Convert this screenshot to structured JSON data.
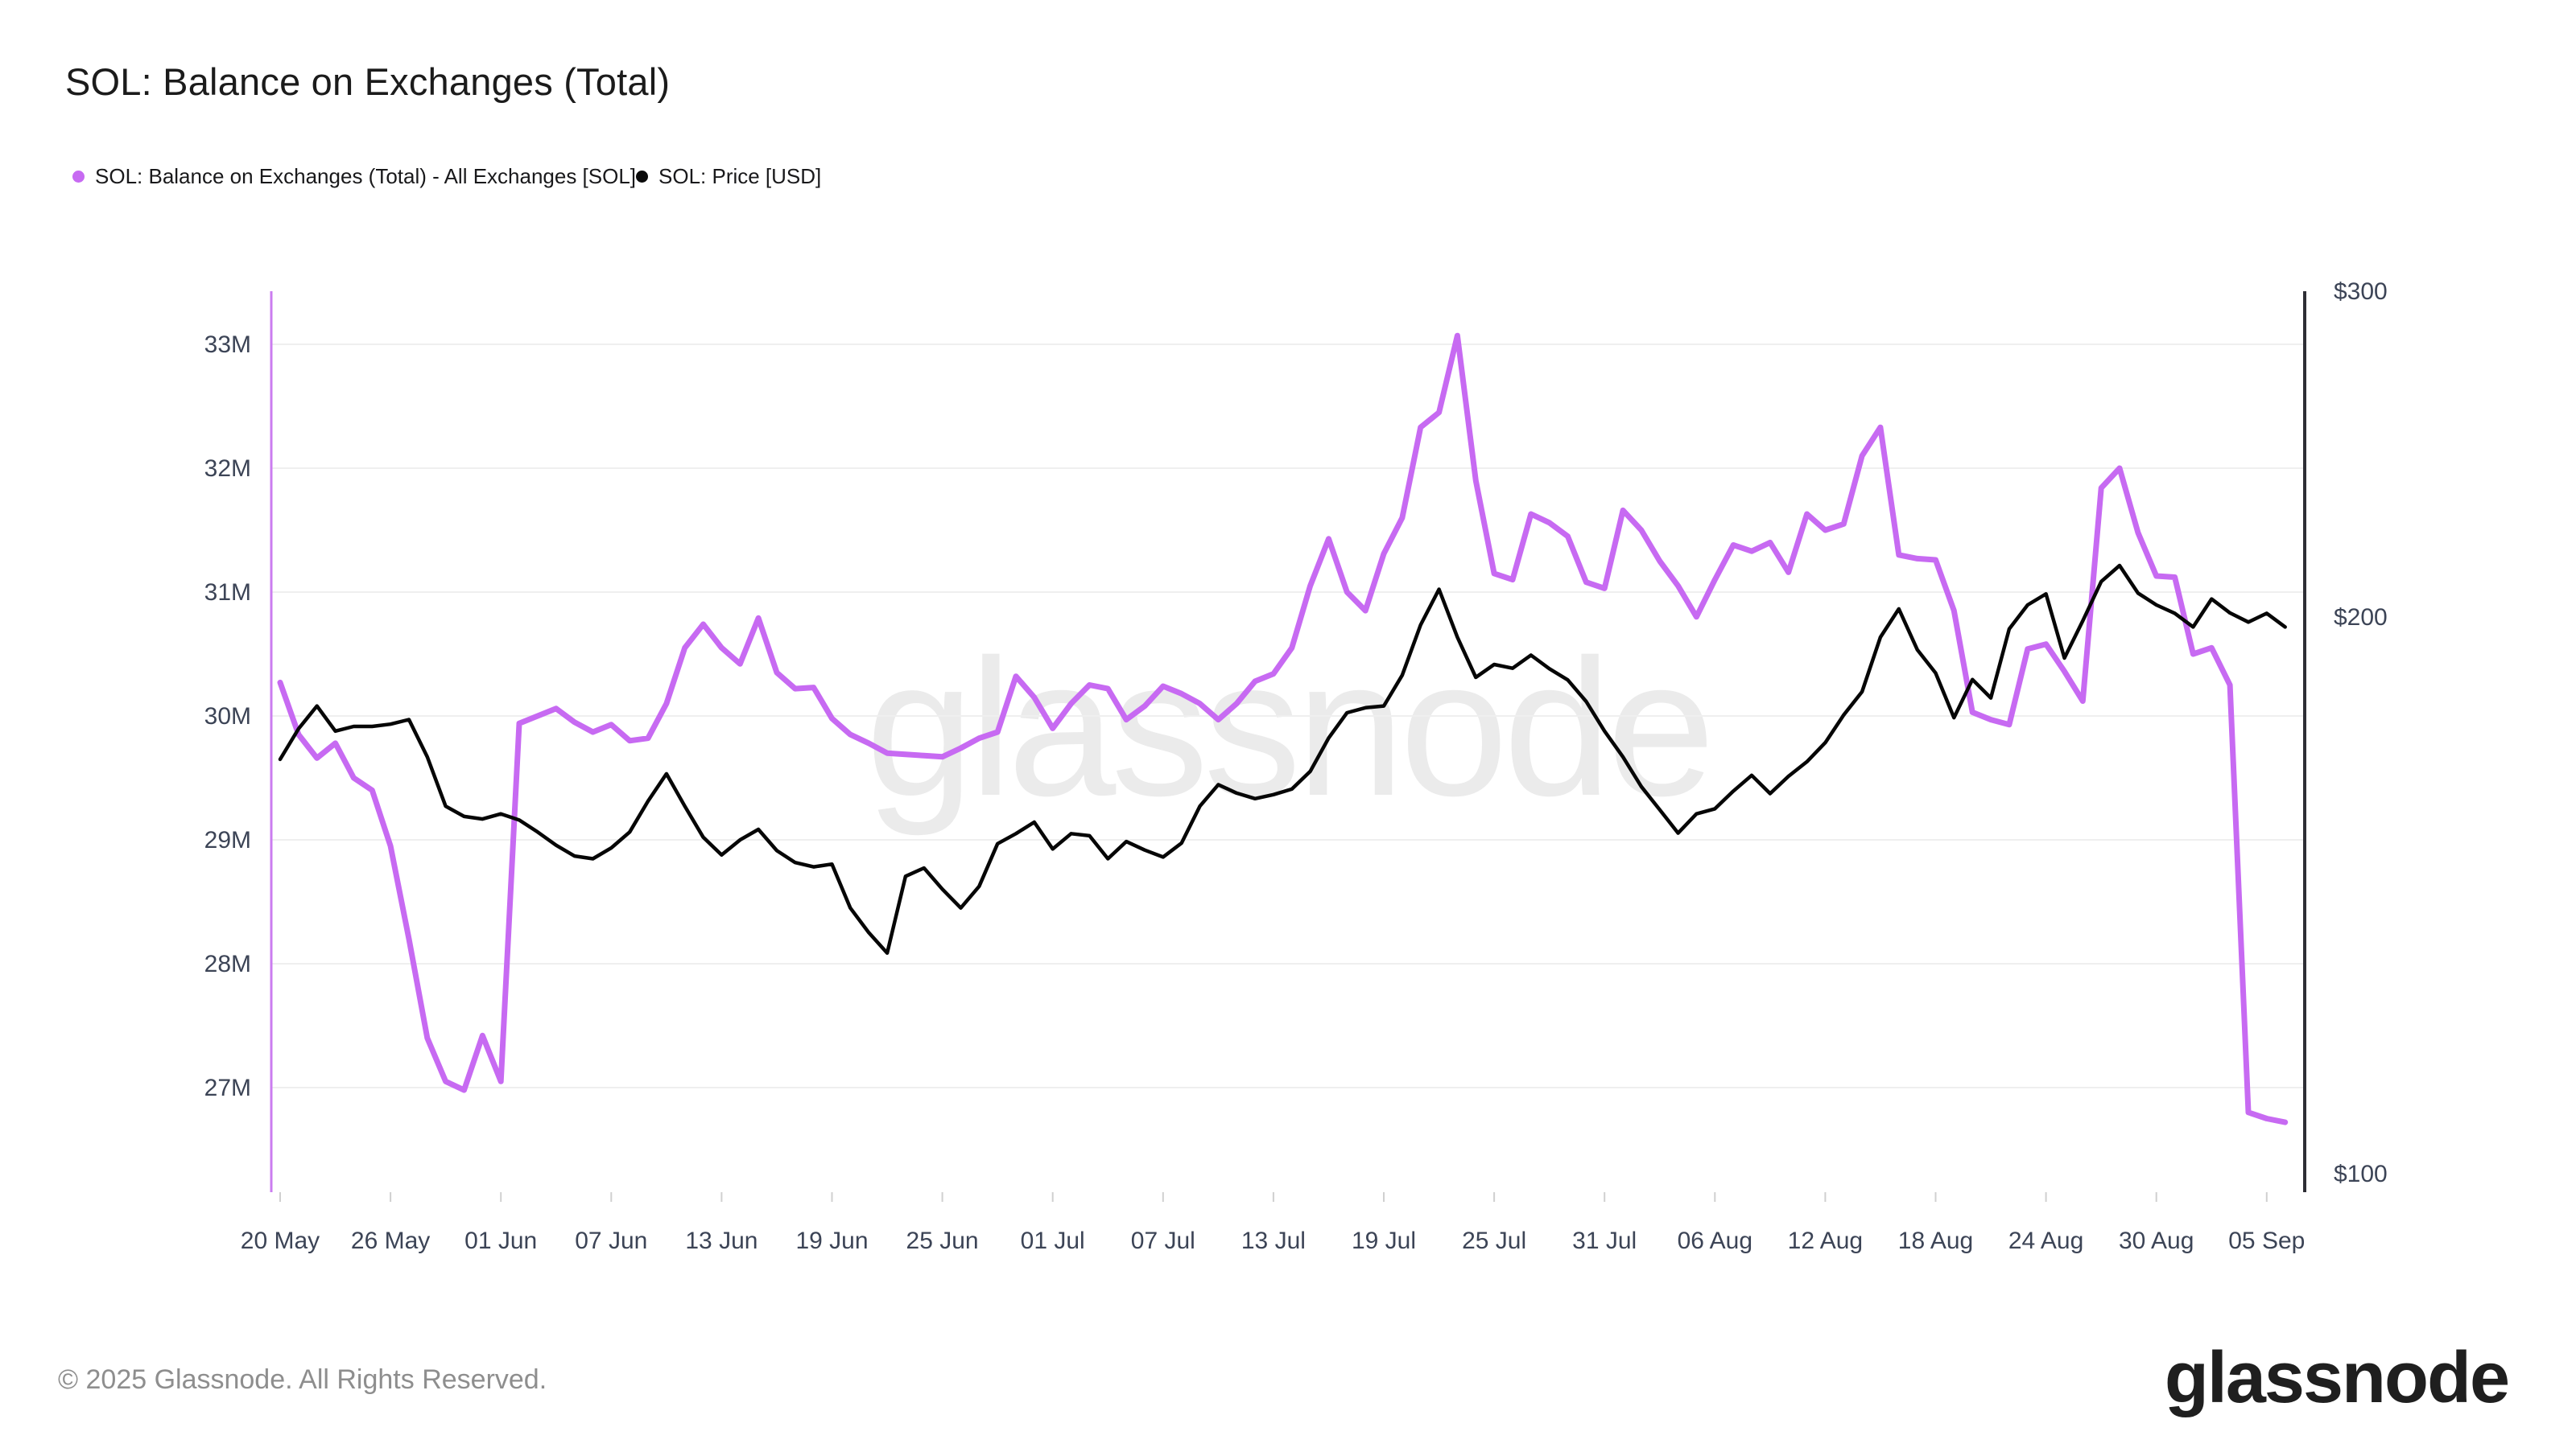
{
  "chart": {
    "title": "SOL: Balance on Exchanges (Total)"
  },
  "legend": {
    "items": [
      {
        "label": "SOL: Balance on Exchanges (Total) - All Exchanges [SOL]",
        "color": "#c76af2"
      },
      {
        "label": "SOL: Price [USD]",
        "color": "#0a0a0a"
      }
    ]
  },
  "watermark": {
    "text": "glassnode",
    "color": "#ebebeb"
  },
  "footer": {
    "copyright": "© 2025 Glassnode. All Rights Reserved.",
    "logo": "glassnode"
  },
  "colors": {
    "balance_line": "#c76af2",
    "price_line": "#060606",
    "left_axis_line": "#cb7cf0",
    "right_axis_line": "#2e2e35",
    "gridline": "#efefef",
    "tick_label": "#3c4456",
    "tick_stub": "#d0d0d0"
  },
  "axes": {
    "left": {
      "title": "balance",
      "unit": "SOL",
      "scale": "linear",
      "ticks": [
        {
          "label": "33M",
          "value": 33
        },
        {
          "label": "32M",
          "value": 32
        },
        {
          "label": "31M",
          "value": 31
        },
        {
          "label": "30M",
          "value": 30
        },
        {
          "label": "29M",
          "value": 29
        },
        {
          "label": "28M",
          "value": 28
        },
        {
          "label": "27M",
          "value": 27
        }
      ]
    },
    "right": {
      "title": "price",
      "unit": "USD",
      "scale": "log",
      "ticks": [
        {
          "label": "$300",
          "value": 300
        },
        {
          "label": "$200",
          "value": 200
        },
        {
          "label": "$100",
          "value": 100
        }
      ]
    },
    "bottom": {
      "ticks": [
        {
          "label": "20 May",
          "date": "2025-05-20"
        },
        {
          "label": "26 May",
          "date": "2025-05-26"
        },
        {
          "label": "01 Jun",
          "date": "2025-06-01"
        },
        {
          "label": "07 Jun",
          "date": "2025-06-07"
        },
        {
          "label": "13 Jun",
          "date": "2025-06-13"
        },
        {
          "label": "19 Jun",
          "date": "2025-06-19"
        },
        {
          "label": "25 Jun",
          "date": "2025-06-25"
        },
        {
          "label": "01 Jul",
          "date": "2025-07-01"
        },
        {
          "label": "07 Jul",
          "date": "2025-07-07"
        },
        {
          "label": "13 Jul",
          "date": "2025-07-13"
        },
        {
          "label": "19 Jul",
          "date": "2025-07-19"
        },
        {
          "label": "25 Jul",
          "date": "2025-07-25"
        },
        {
          "label": "31 Jul",
          "date": "2025-07-31"
        },
        {
          "label": "06 Aug",
          "date": "2025-08-06"
        },
        {
          "label": "12 Aug",
          "date": "2025-08-12"
        },
        {
          "label": "18 Aug",
          "date": "2025-08-18"
        },
        {
          "label": "24 Aug",
          "date": "2025-08-24"
        },
        {
          "label": "30 Aug",
          "date": "2025-08-30"
        },
        {
          "label": "05 Sep",
          "date": "2025-09-05"
        }
      ]
    }
  },
  "chart_data": {
    "type": "line",
    "title": "SOL: Balance on Exchanges (Total)",
    "x_start": "2025-05-20",
    "x_end": "2025-09-06",
    "left_ylim": [
      26.3,
      33.45
    ],
    "right_ylim": [
      100,
      300
    ],
    "right_scale": "log",
    "grid": "horizontal-only",
    "legend_position": "top-left",
    "series": [
      {
        "name": "SOL: Balance on Exchanges (Total) - All Exchanges [SOL]",
        "axis": "left",
        "unit": "M SOL",
        "color": "#c76af2",
        "points": [
          [
            "2025-05-20",
            30.27
          ],
          [
            "2025-05-21",
            29.85
          ],
          [
            "2025-05-22",
            29.66
          ],
          [
            "2025-05-23",
            29.78
          ],
          [
            "2025-05-24",
            29.5
          ],
          [
            "2025-05-25",
            29.4
          ],
          [
            "2025-05-26",
            28.95
          ],
          [
            "2025-05-27",
            28.2
          ],
          [
            "2025-05-28",
            27.4
          ],
          [
            "2025-05-29",
            27.05
          ],
          [
            "2025-05-30",
            26.98
          ],
          [
            "2025-05-31",
            27.42
          ],
          [
            "2025-06-01",
            27.05
          ],
          [
            "2025-06-02",
            29.94
          ],
          [
            "2025-06-03",
            30.0
          ],
          [
            "2025-06-04",
            30.06
          ],
          [
            "2025-06-05",
            29.95
          ],
          [
            "2025-06-06",
            29.87
          ],
          [
            "2025-06-07",
            29.93
          ],
          [
            "2025-06-08",
            29.8
          ],
          [
            "2025-06-09",
            29.82
          ],
          [
            "2025-06-10",
            30.1
          ],
          [
            "2025-06-11",
            30.55
          ],
          [
            "2025-06-12",
            30.74
          ],
          [
            "2025-06-13",
            30.55
          ],
          [
            "2025-06-14",
            30.42
          ],
          [
            "2025-06-15",
            30.79
          ],
          [
            "2025-06-16",
            30.35
          ],
          [
            "2025-06-17",
            30.22
          ],
          [
            "2025-06-18",
            30.23
          ],
          [
            "2025-06-19",
            29.98
          ],
          [
            "2025-06-20",
            29.85
          ],
          [
            "2025-06-21",
            29.78
          ],
          [
            "2025-06-22",
            29.7
          ],
          [
            "2025-06-23",
            29.69
          ],
          [
            "2025-06-24",
            29.68
          ],
          [
            "2025-06-25",
            29.67
          ],
          [
            "2025-06-26",
            29.74
          ],
          [
            "2025-06-27",
            29.82
          ],
          [
            "2025-06-28",
            29.87
          ],
          [
            "2025-06-29",
            30.32
          ],
          [
            "2025-06-30",
            30.15
          ],
          [
            "2025-07-01",
            29.9
          ],
          [
            "2025-07-02",
            30.1
          ],
          [
            "2025-07-03",
            30.25
          ],
          [
            "2025-07-04",
            30.22
          ],
          [
            "2025-07-05",
            29.97
          ],
          [
            "2025-07-06",
            30.08
          ],
          [
            "2025-07-07",
            30.24
          ],
          [
            "2025-07-08",
            30.18
          ],
          [
            "2025-07-09",
            30.1
          ],
          [
            "2025-07-10",
            29.97
          ],
          [
            "2025-07-11",
            30.1
          ],
          [
            "2025-07-12",
            30.28
          ],
          [
            "2025-07-13",
            30.34
          ],
          [
            "2025-07-14",
            30.55
          ],
          [
            "2025-07-15",
            31.05
          ],
          [
            "2025-07-16",
            31.43
          ],
          [
            "2025-07-17",
            31.0
          ],
          [
            "2025-07-18",
            30.85
          ],
          [
            "2025-07-19",
            31.31
          ],
          [
            "2025-07-20",
            31.6
          ],
          [
            "2025-07-21",
            32.33
          ],
          [
            "2025-07-22",
            32.45
          ],
          [
            "2025-07-23",
            33.07
          ],
          [
            "2025-07-24",
            31.9
          ],
          [
            "2025-07-25",
            31.15
          ],
          [
            "2025-07-26",
            31.1
          ],
          [
            "2025-07-27",
            31.63
          ],
          [
            "2025-07-28",
            31.56
          ],
          [
            "2025-07-29",
            31.45
          ],
          [
            "2025-07-30",
            31.08
          ],
          [
            "2025-07-31",
            31.03
          ],
          [
            "2025-08-01",
            31.66
          ],
          [
            "2025-08-02",
            31.5
          ],
          [
            "2025-08-03",
            31.25
          ],
          [
            "2025-08-04",
            31.05
          ],
          [
            "2025-08-05",
            30.8
          ],
          [
            "2025-08-06",
            31.1
          ],
          [
            "2025-08-07",
            31.38
          ],
          [
            "2025-08-08",
            31.33
          ],
          [
            "2025-08-09",
            31.4
          ],
          [
            "2025-08-10",
            31.16
          ],
          [
            "2025-08-11",
            31.63
          ],
          [
            "2025-08-12",
            31.5
          ],
          [
            "2025-08-13",
            31.55
          ],
          [
            "2025-08-14",
            32.1
          ],
          [
            "2025-08-15",
            32.33
          ],
          [
            "2025-08-16",
            31.3
          ],
          [
            "2025-08-17",
            31.27
          ],
          [
            "2025-08-18",
            31.26
          ],
          [
            "2025-08-19",
            30.85
          ],
          [
            "2025-08-20",
            30.03
          ],
          [
            "2025-08-21",
            29.97
          ],
          [
            "2025-08-22",
            29.93
          ],
          [
            "2025-08-23",
            30.54
          ],
          [
            "2025-08-24",
            30.58
          ],
          [
            "2025-08-25",
            30.36
          ],
          [
            "2025-08-26",
            30.12
          ],
          [
            "2025-08-27",
            31.84
          ],
          [
            "2025-08-28",
            32.0
          ],
          [
            "2025-08-29",
            31.48
          ],
          [
            "2025-08-30",
            31.13
          ],
          [
            "2025-08-31",
            31.12
          ],
          [
            "2025-09-01",
            30.5
          ],
          [
            "2025-09-02",
            30.55
          ],
          [
            "2025-09-03",
            30.25
          ],
          [
            "2025-09-04",
            26.8
          ],
          [
            "2025-09-05",
            26.75
          ],
          [
            "2025-09-06",
            26.72
          ]
        ]
      },
      {
        "name": "SOL: Price [USD]",
        "axis": "right",
        "unit": "USD",
        "color": "#060606",
        "points": [
          [
            "2025-05-20",
            167.5
          ],
          [
            "2025-05-21",
            174
          ],
          [
            "2025-05-22",
            179
          ],
          [
            "2025-05-23",
            173.5
          ],
          [
            "2025-05-24",
            174.5
          ],
          [
            "2025-05-25",
            174.5
          ],
          [
            "2025-05-26",
            175
          ],
          [
            "2025-05-27",
            176
          ],
          [
            "2025-05-28",
            168
          ],
          [
            "2025-05-29",
            158
          ],
          [
            "2025-05-30",
            156
          ],
          [
            "2025-05-31",
            155.5
          ],
          [
            "2025-06-01",
            156.5
          ],
          [
            "2025-06-02",
            155.3
          ],
          [
            "2025-06-03",
            153
          ],
          [
            "2025-06-04",
            150.5
          ],
          [
            "2025-06-05",
            148.5
          ],
          [
            "2025-06-06",
            148
          ],
          [
            "2025-06-07",
            150
          ],
          [
            "2025-06-08",
            153
          ],
          [
            "2025-06-09",
            159
          ],
          [
            "2025-06-10",
            164.5
          ],
          [
            "2025-06-11",
            158
          ],
          [
            "2025-06-12",
            152
          ],
          [
            "2025-06-13",
            148.7
          ],
          [
            "2025-06-14",
            151.5
          ],
          [
            "2025-06-15",
            153.5
          ],
          [
            "2025-06-16",
            149.5
          ],
          [
            "2025-06-17",
            147.3
          ],
          [
            "2025-06-18",
            146.5
          ],
          [
            "2025-06-19",
            147
          ],
          [
            "2025-06-20",
            139.2
          ],
          [
            "2025-06-21",
            135
          ],
          [
            "2025-06-22",
            131.6
          ],
          [
            "2025-06-23",
            144.8
          ],
          [
            "2025-06-24",
            146.3
          ],
          [
            "2025-06-25",
            142.5
          ],
          [
            "2025-06-26",
            139.2
          ],
          [
            "2025-06-27",
            143
          ],
          [
            "2025-06-28",
            150.8
          ],
          [
            "2025-06-29",
            152.7
          ],
          [
            "2025-06-30",
            154.9
          ],
          [
            "2025-07-01",
            149.8
          ],
          [
            "2025-07-02",
            152.7
          ],
          [
            "2025-07-03",
            152.3
          ],
          [
            "2025-07-04",
            148
          ],
          [
            "2025-07-05",
            151.2
          ],
          [
            "2025-07-06",
            149.6
          ],
          [
            "2025-07-07",
            148.3
          ],
          [
            "2025-07-08",
            150.9
          ],
          [
            "2025-07-09",
            158
          ],
          [
            "2025-07-10",
            162.3
          ],
          [
            "2025-07-11",
            160.6
          ],
          [
            "2025-07-12",
            159.5
          ],
          [
            "2025-07-13",
            160.3
          ],
          [
            "2025-07-14",
            161.4
          ],
          [
            "2025-07-15",
            165
          ],
          [
            "2025-07-16",
            172
          ],
          [
            "2025-07-17",
            177.5
          ],
          [
            "2025-07-18",
            178.6
          ],
          [
            "2025-07-19",
            179
          ],
          [
            "2025-07-20",
            186
          ],
          [
            "2025-07-21",
            198
          ],
          [
            "2025-07-22",
            207
          ],
          [
            "2025-07-23",
            195
          ],
          [
            "2025-07-24",
            185.5
          ],
          [
            "2025-07-25",
            188.5
          ],
          [
            "2025-07-26",
            187.6
          ],
          [
            "2025-07-27",
            190.7
          ],
          [
            "2025-07-28",
            187.5
          ],
          [
            "2025-07-29",
            184.9
          ],
          [
            "2025-07-30",
            180
          ],
          [
            "2025-07-31",
            173.5
          ],
          [
            "2025-08-01",
            168
          ],
          [
            "2025-08-02",
            161.9
          ],
          [
            "2025-08-03",
            157.3
          ],
          [
            "2025-08-04",
            152.8
          ],
          [
            "2025-08-05",
            156.5
          ],
          [
            "2025-08-06",
            157.5
          ],
          [
            "2025-08-07",
            161
          ],
          [
            "2025-08-08",
            164.2
          ],
          [
            "2025-08-09",
            160.5
          ],
          [
            "2025-08-10",
            164
          ],
          [
            "2025-08-11",
            167
          ],
          [
            "2025-08-12",
            171
          ],
          [
            "2025-08-13",
            177
          ],
          [
            "2025-08-14",
            182.2
          ],
          [
            "2025-08-15",
            195
          ],
          [
            "2025-08-16",
            202
          ],
          [
            "2025-08-17",
            192
          ],
          [
            "2025-08-18",
            186.5
          ],
          [
            "2025-08-19",
            176.4
          ],
          [
            "2025-08-20",
            185
          ],
          [
            "2025-08-21",
            180.8
          ],
          [
            "2025-08-22",
            197
          ],
          [
            "2025-08-23",
            203
          ],
          [
            "2025-08-24",
            205.8
          ],
          [
            "2025-08-25",
            190
          ],
          [
            "2025-08-26",
            199
          ],
          [
            "2025-08-27",
            209
          ],
          [
            "2025-08-28",
            213.2
          ],
          [
            "2025-08-29",
            206
          ],
          [
            "2025-08-30",
            203
          ],
          [
            "2025-08-31",
            200.9
          ],
          [
            "2025-09-01",
            197.5
          ],
          [
            "2025-09-02",
            204.5
          ],
          [
            "2025-09-03",
            201
          ],
          [
            "2025-09-04",
            198.7
          ],
          [
            "2025-09-05",
            200.9
          ],
          [
            "2025-09-06",
            197.5
          ]
        ]
      }
    ]
  }
}
